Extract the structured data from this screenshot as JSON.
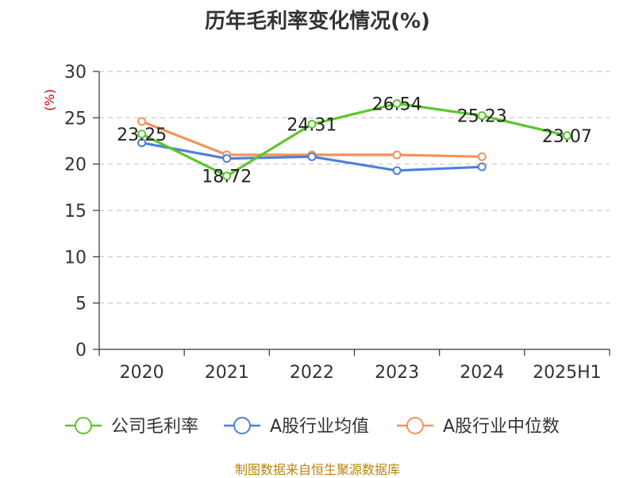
{
  "title": "历年毛利率变化情况(%)",
  "source_note": "制图数据来自恒生聚源数据库",
  "colors": {
    "gross_margin": "#5cc62e",
    "industry_mean": "#4f7fdc",
    "industry_median": "#f4925a",
    "grid": "#c8c8c8",
    "axis": "#333333"
  },
  "chart_data": {
    "type": "line",
    "title": "历年毛利率变化情况(%)",
    "ylabel": "(%)",
    "ylim": [
      0,
      30
    ],
    "yticks": [
      "0",
      "5",
      "10",
      "15",
      "20",
      "25",
      "30"
    ],
    "categories": [
      "2020",
      "2021",
      "2022",
      "2023",
      "2024",
      "2025H1"
    ],
    "grid": "horizontal-dashed",
    "legend_position": "bottom",
    "series": [
      {
        "name": "公司毛利率",
        "key": "gross_margin",
        "values": [
          23.25,
          18.72,
          24.31,
          26.54,
          25.23,
          23.07
        ],
        "labels": [
          "23.25",
          "18.72",
          "24.31",
          "26.54",
          "25.23",
          "23.07"
        ]
      },
      {
        "name": "A股行业均值",
        "key": "industry_mean",
        "values": [
          22.3,
          20.6,
          20.8,
          19.3,
          19.7,
          null
        ]
      },
      {
        "name": "A股行业中位数",
        "key": "industry_median",
        "values": [
          24.6,
          21.0,
          21.0,
          21.0,
          20.8,
          null
        ]
      }
    ]
  }
}
